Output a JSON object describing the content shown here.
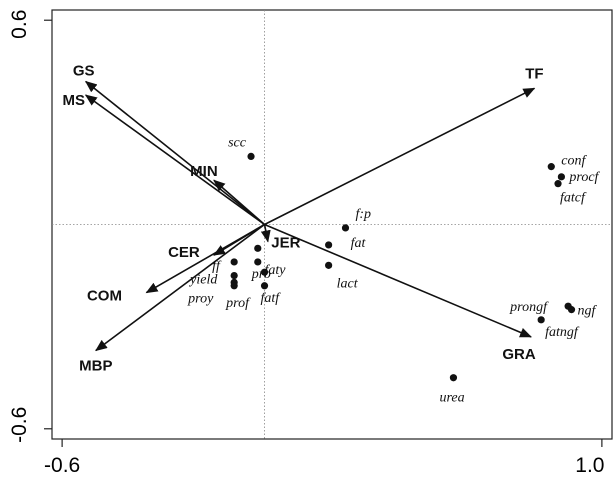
{
  "chart_data": {
    "type": "scatter",
    "subtype": "biplot",
    "title": "",
    "xlabel": "",
    "ylabel": "",
    "xlim": [
      -0.6,
      1.0
    ],
    "ylim": [
      -0.6,
      0.6
    ],
    "x_ticks": [
      "-0.6",
      "1.0"
    ],
    "y_ticks": [
      "0.6",
      "-0.6"
    ],
    "grid": false,
    "reference_lines": "dotted lines at x=0 and y=0",
    "arrow_color": "#111111",
    "point_color": "#111111",
    "vectors": [
      {
        "label": "TF",
        "x": 0.8,
        "y": 0.4
      },
      {
        "label": "GS",
        "x": -0.53,
        "y": 0.42
      },
      {
        "label": "MS",
        "x": -0.53,
        "y": 0.38
      },
      {
        "label": "MIN",
        "x": -0.15,
        "y": 0.13
      },
      {
        "label": "CER",
        "x": -0.15,
        "y": -0.09
      },
      {
        "label": "JER",
        "x": 0.01,
        "y": -0.05
      },
      {
        "label": "COM",
        "x": -0.35,
        "y": -0.2
      },
      {
        "label": "MBP",
        "x": -0.5,
        "y": -0.37
      },
      {
        "label": "GRA",
        "x": 0.79,
        "y": -0.33
      }
    ],
    "points": [
      {
        "label": "scc",
        "x": -0.04,
        "y": 0.2
      },
      {
        "label": "conf",
        "x": 0.85,
        "y": 0.17
      },
      {
        "label": "procf",
        "x": 0.88,
        "y": 0.14
      },
      {
        "label": "fatcf",
        "x": 0.87,
        "y": 0.12
      },
      {
        "label": "f:p",
        "x": 0.24,
        "y": -0.01
      },
      {
        "label": "fat",
        "x": 0.19,
        "y": -0.06
      },
      {
        "label": "lact",
        "x": 0.19,
        "y": -0.12
      },
      {
        "label": "JER",
        "x": -0.02,
        "y": -0.07
      },
      {
        "label": "ff",
        "x": -0.09,
        "y": -0.11
      },
      {
        "label": "pro",
        "x": -0.02,
        "y": -0.11
      },
      {
        "label": "faty",
        "x": 0.0,
        "y": -0.14
      },
      {
        "label": "yield",
        "x": -0.09,
        "y": -0.15
      },
      {
        "label": "proy",
        "x": -0.09,
        "y": -0.17
      },
      {
        "label": "prof",
        "x": -0.09,
        "y": -0.18
      },
      {
        "label": "fatf",
        "x": 0.0,
        "y": -0.18
      },
      {
        "label": "prongf",
        "x": 0.9,
        "y": -0.24
      },
      {
        "label": "ngf",
        "x": 0.91,
        "y": -0.25
      },
      {
        "label": "fatngf",
        "x": 0.82,
        "y": -0.28
      },
      {
        "label": "urea",
        "x": 0.56,
        "y": -0.45
      }
    ]
  }
}
